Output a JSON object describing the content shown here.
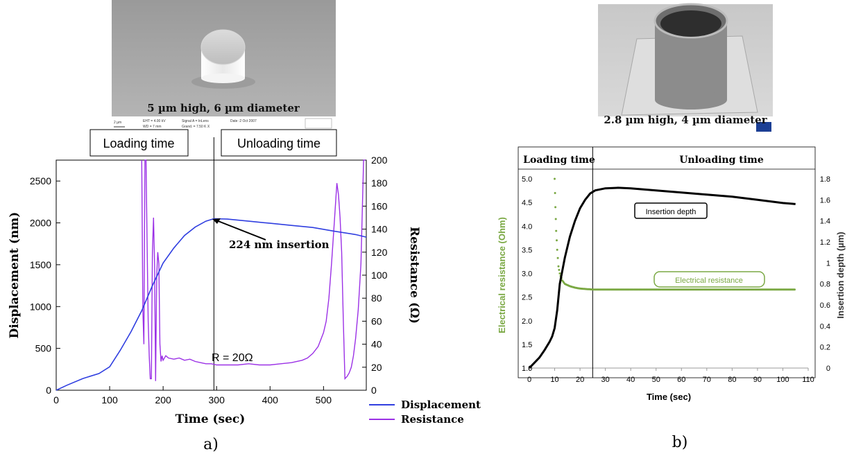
{
  "panel_a": {
    "sem_caption": "5 µm high, 6 µm diameter",
    "sem_scale_label": "2 µm",
    "sem_info": [
      "EHT = 4.00 kV",
      "WD = 7 mm",
      "Signal A = InLens",
      "Grand. = 7.50 K X",
      "Date :2 Oct 2007"
    ],
    "loading_label": "Loading time",
    "unloading_label": "Unloading time",
    "annotation_insertion": "224 nm insertion",
    "annotation_resistance": "R = 20Ω",
    "panel_label": "a)"
  },
  "panel_b": {
    "sem_caption": "2.8 µm high, 4 µm diameter",
    "loading_label": "Loading time",
    "unloading_label": "Unloading time",
    "annotation_depth": "Insertion depth",
    "annotation_resistance": "Electrical resistance",
    "panel_label": "b)"
  },
  "chart_data": [
    {
      "type": "line",
      "xlabel": "Time (sec)",
      "ylabel": "Displacement (nm)",
      "y2label": "Resistance (Ω)",
      "xlim": [
        0,
        580
      ],
      "ylim": [
        0,
        2750
      ],
      "y2lim": [
        0,
        200
      ],
      "xticks": [
        0,
        100,
        200,
        300,
        400,
        500
      ],
      "yticks": [
        0,
        500,
        1000,
        1500,
        2000,
        2500
      ],
      "y2ticks": [
        0,
        20,
        40,
        60,
        80,
        100,
        120,
        140,
        160,
        180,
        200
      ],
      "divider_x": 295,
      "colors": {
        "displacement": "#2f3ee0",
        "resistance": "#9b30e6"
      },
      "series": [
        {
          "name": "Displacement",
          "axis": "left",
          "x": [
            0,
            20,
            50,
            80,
            100,
            120,
            140,
            160,
            180,
            200,
            220,
            240,
            260,
            280,
            295,
            320,
            360,
            400,
            440,
            480,
            520,
            560,
            580
          ],
          "y": [
            0,
            60,
            140,
            200,
            280,
            480,
            700,
            950,
            1250,
            1520,
            1700,
            1850,
            1950,
            2020,
            2050,
            2045,
            2020,
            1995,
            1970,
            1945,
            1900,
            1860,
            1830
          ]
        },
        {
          "name": "Resistance",
          "axis": "right",
          "x": [
            160,
            162,
            164,
            166,
            168,
            170,
            172,
            174,
            176,
            178,
            180,
            182,
            184,
            186,
            188,
            190,
            192,
            194,
            196,
            198,
            200,
            205,
            210,
            220,
            230,
            240,
            250,
            260,
            270,
            280,
            290,
            300,
            320,
            340,
            360,
            380,
            400,
            420,
            440,
            460,
            470,
            480,
            490,
            500,
            505,
            510,
            515,
            520,
            525,
            528,
            531,
            534,
            537,
            540,
            544,
            548,
            552,
            556,
            560,
            565,
            570,
            575,
            578
          ],
          "y": [
            200,
            70,
            40,
            200,
            200,
            130,
            60,
            30,
            10,
            10,
            120,
            150,
            110,
            8,
            100,
            120,
            110,
            40,
            25,
            30,
            26,
            30,
            28,
            27,
            28,
            26,
            27,
            25,
            24,
            23,
            23,
            22,
            22,
            22,
            23,
            22,
            22,
            23,
            24,
            26,
            28,
            32,
            38,
            50,
            60,
            80,
            110,
            145,
            180,
            170,
            150,
            120,
            60,
            10,
            12,
            15,
            20,
            30,
            45,
            70,
            110,
            200,
            200
          ]
        }
      ]
    },
    {
      "type": "line",
      "xlabel": "Time (sec)",
      "ylabel": "Electrical resistance (Ohm)",
      "y2label": "Insertion depth (µm)",
      "xlim": [
        0,
        110
      ],
      "ylim": [
        1.0,
        5.0
      ],
      "y2lim": [
        0,
        1.8
      ],
      "xticks": [
        0,
        10,
        20,
        30,
        40,
        50,
        60,
        70,
        80,
        90,
        100,
        110
      ],
      "yticks": [
        1.0,
        1.5,
        2.0,
        2.5,
        3.0,
        3.5,
        4.0,
        4.5,
        5.0
      ],
      "y2ticks": [
        0,
        0.2,
        0.4,
        0.6,
        0.8,
        1,
        1.2,
        1.4,
        1.6,
        1.8
      ],
      "y2ticklabels": [
        "0",
        "0.2",
        "0.4",
        "0.6",
        "0.8",
        "1",
        "1.2",
        "1.4",
        "1.6",
        "1.8"
      ],
      "divider_x": 25,
      "colors": {
        "resistance": "#7aa843",
        "depth": "#000000"
      },
      "series": [
        {
          "name": "Insertion depth",
          "axis": "right",
          "x": [
            0,
            2,
            4,
            6,
            8,
            9,
            10,
            11,
            12,
            14,
            16,
            18,
            20,
            22,
            24,
            26,
            28,
            30,
            35,
            40,
            50,
            60,
            70,
            80,
            90,
            100,
            105
          ],
          "y": [
            0,
            0.05,
            0.1,
            0.17,
            0.25,
            0.3,
            0.38,
            0.55,
            0.8,
            1.05,
            1.25,
            1.4,
            1.52,
            1.6,
            1.66,
            1.69,
            1.7,
            1.71,
            1.715,
            1.71,
            1.69,
            1.67,
            1.65,
            1.63,
            1.6,
            1.57,
            1.56
          ]
        },
        {
          "name": "Electrical resistance",
          "axis": "left",
          "x": [
            10,
            10.3,
            10.6,
            11,
            11.5,
            12,
            13,
            14,
            16,
            18,
            20,
            25,
            30,
            40,
            50,
            60,
            70,
            80,
            90,
            100,
            105
          ],
          "y": [
            5.0,
            4.4,
            3.9,
            3.5,
            3.15,
            3.0,
            2.85,
            2.78,
            2.73,
            2.7,
            2.68,
            2.66,
            2.66,
            2.66,
            2.66,
            2.66,
            2.66,
            2.66,
            2.66,
            2.66,
            2.66
          ]
        }
      ]
    }
  ]
}
